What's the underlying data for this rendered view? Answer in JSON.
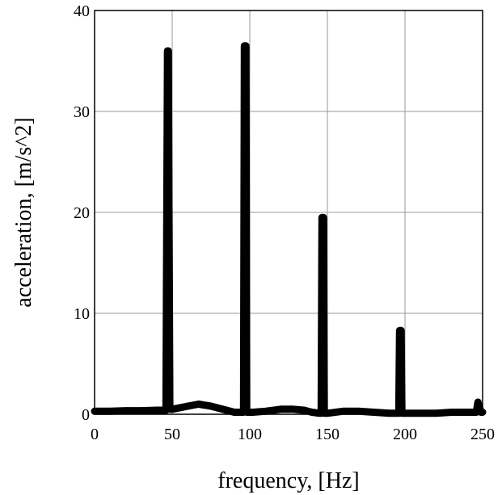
{
  "chart_data": {
    "type": "line",
    "title": "",
    "xlabel": "frequency, [Hz]",
    "ylabel": "acceleration, [m/s^2]",
    "xlim": [
      0,
      250
    ],
    "ylim": [
      0,
      40
    ],
    "grid": true,
    "x_ticks": [
      "0",
      "50",
      "100",
      "150",
      "200",
      "250"
    ],
    "y_ticks": [
      "0",
      "10",
      "20",
      "30",
      "40"
    ],
    "series": [
      {
        "color": "#000000",
        "x": [
          0,
          10,
          20,
          30,
          40,
          46,
          47,
          47.5,
          48.5,
          49,
          50,
          60,
          67,
          75,
          85,
          90,
          96,
          96.5,
          97.5,
          98,
          102,
          110,
          120,
          128,
          135,
          140,
          145,
          146,
          146.5,
          147.5,
          148,
          150,
          160,
          170,
          180,
          190,
          196,
          196.5,
          197.5,
          198,
          200,
          210,
          220,
          230,
          240,
          246,
          247,
          249,
          250
        ],
        "y": [
          0.3,
          0.3,
          0.35,
          0.35,
          0.4,
          0.4,
          36,
          36,
          0.5,
          0.5,
          0.5,
          0.8,
          1.0,
          0.8,
          0.4,
          0.2,
          0.2,
          36.5,
          36.5,
          0.2,
          0.2,
          0.3,
          0.5,
          0.5,
          0.4,
          0.2,
          0.1,
          0.1,
          19.5,
          19.5,
          0.1,
          0.1,
          0.3,
          0.3,
          0.2,
          0.1,
          0.1,
          8.3,
          8.3,
          0.1,
          0.1,
          0.1,
          0.1,
          0.2,
          0.2,
          0.2,
          1.2,
          0.2,
          0.2
        ]
      }
    ]
  }
}
